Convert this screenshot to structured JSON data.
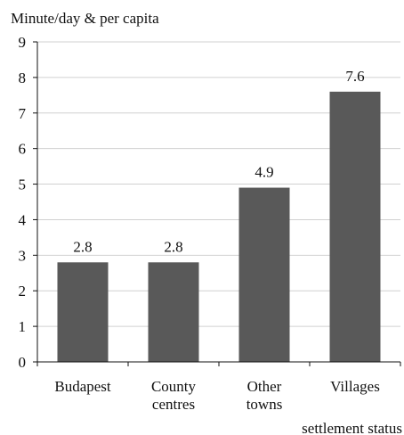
{
  "chart_data": {
    "type": "bar",
    "title": "",
    "ylabel": "Minute/day & per capita",
    "xlabel": "settlement status",
    "categories": [
      "Budapest",
      "County\ncentres",
      "Other\ntowns",
      "Villages"
    ],
    "values": [
      2.8,
      2.8,
      4.9,
      7.6
    ],
    "data_labels": [
      "2.8",
      "2.8",
      "4.9",
      "7.6"
    ],
    "ylim": [
      0,
      9
    ],
    "yticks": [
      0,
      1,
      2,
      3,
      4,
      5,
      6,
      7,
      8,
      9
    ],
    "grid": true,
    "legend": "none",
    "colors": {
      "bar": "#595959",
      "grid": "#d0d0d0",
      "axis": "#111111",
      "text": "#111111"
    }
  }
}
